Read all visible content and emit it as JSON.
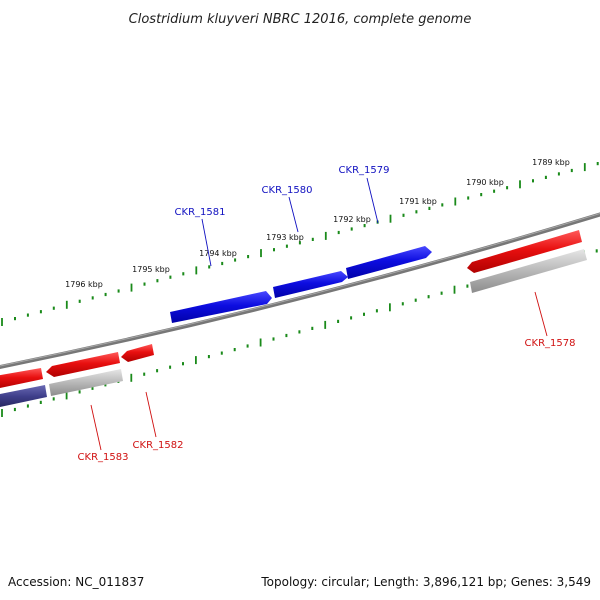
{
  "title": "Clostridium kluyveri NBRC 12016, complete genome",
  "footer": {
    "accession": "Accession: NC_011837",
    "summary": "Topology: circular; Length: 3,896,121 bp; Genes: 3,549"
  },
  "colors": {
    "forward_gene": "#1010e0",
    "reverse_gene": "#ee1111",
    "pseudo_gene": "#b4b4b4",
    "dark_gene": "#3e3e8a",
    "backbone": "#777777",
    "ticks": "#1a8a1a",
    "forward_label": "#1010c0",
    "reverse_label": "#d01010"
  },
  "kbp_labels": {
    "k1789": "1789 kbp",
    "k1790": "1790 kbp",
    "k1791": "1791 kbp",
    "k1792": "1792 kbp",
    "k1793": "1793 kbp",
    "k1794": "1794 kbp",
    "k1795": "1795 kbp",
    "k1796": "1796 kbp"
  },
  "genes": {
    "ckr1579": "CKR_1579",
    "ckr1580": "CKR_1580",
    "ckr1581": "CKR_1581",
    "ckr1578": "CKR_1578",
    "ckr1582": "CKR_1582",
    "ckr1583": "CKR_1583"
  }
}
